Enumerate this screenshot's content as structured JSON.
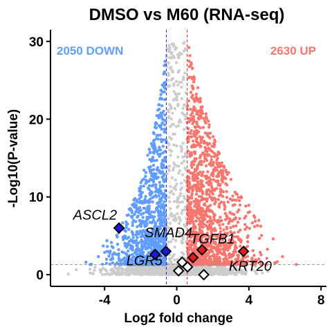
{
  "chart_data": {
    "type": "scatter",
    "title": "DMSO vs M60 (RNA-seq)",
    "xlabel": "Log2 fold change",
    "ylabel": "-Log10(P-value)",
    "xlim": [
      -7,
      8.3
    ],
    "ylim": [
      -1.5,
      31.5
    ],
    "xticks": [
      -4,
      0,
      4,
      8
    ],
    "xtick_labels": [
      "-4",
      "0",
      "4",
      "8"
    ],
    "yticks": [
      0,
      10,
      20,
      30
    ],
    "ytick_labels": [
      "0",
      "10",
      "20",
      "30"
    ],
    "fc_threshold": [
      -0.58,
      0.58
    ],
    "p_threshold": 1.3,
    "down_count_label": "2050 DOWN",
    "up_count_label": "2630 UP",
    "colors": {
      "down": "#619CFF",
      "up": "#F8766D",
      "ns": "#CCCCCC",
      "down_dark": "#1A1AE6",
      "up_dark": "#E31A1C",
      "highlight_ns": "#FFFFFF"
    },
    "highlighted_genes": [
      {
        "name": "ASCL2",
        "x": -3.2,
        "y": 6.0,
        "class": "down",
        "labeled": true
      },
      {
        "name": "SMAD4",
        "x": -1.2,
        "y": 2.6,
        "class": "down",
        "labeled": true
      },
      {
        "name": "LGR5",
        "x": -0.6,
        "y": 3.0,
        "class": "down",
        "labeled": true
      },
      {
        "name": "TGFB1",
        "x": 1.4,
        "y": 3.2,
        "class": "up",
        "labeled": true
      },
      {
        "name": "",
        "x": 0.9,
        "y": 2.2,
        "class": "up",
        "labeled": false
      },
      {
        "name": "KRT20",
        "x": 3.7,
        "y": 3.0,
        "class": "up",
        "labeled": true
      },
      {
        "name": "",
        "x": 0.3,
        "y": 1.6,
        "class": "ns",
        "labeled": false
      },
      {
        "name": "",
        "x": 0.6,
        "y": 1.0,
        "class": "ns",
        "labeled": false
      },
      {
        "name": "",
        "x": 0.1,
        "y": 0.5,
        "class": "ns",
        "labeled": false
      },
      {
        "name": "",
        "x": 1.5,
        "y": 0.0,
        "class": "ns",
        "labeled": false
      }
    ],
    "grid": false,
    "legend": "none"
  }
}
